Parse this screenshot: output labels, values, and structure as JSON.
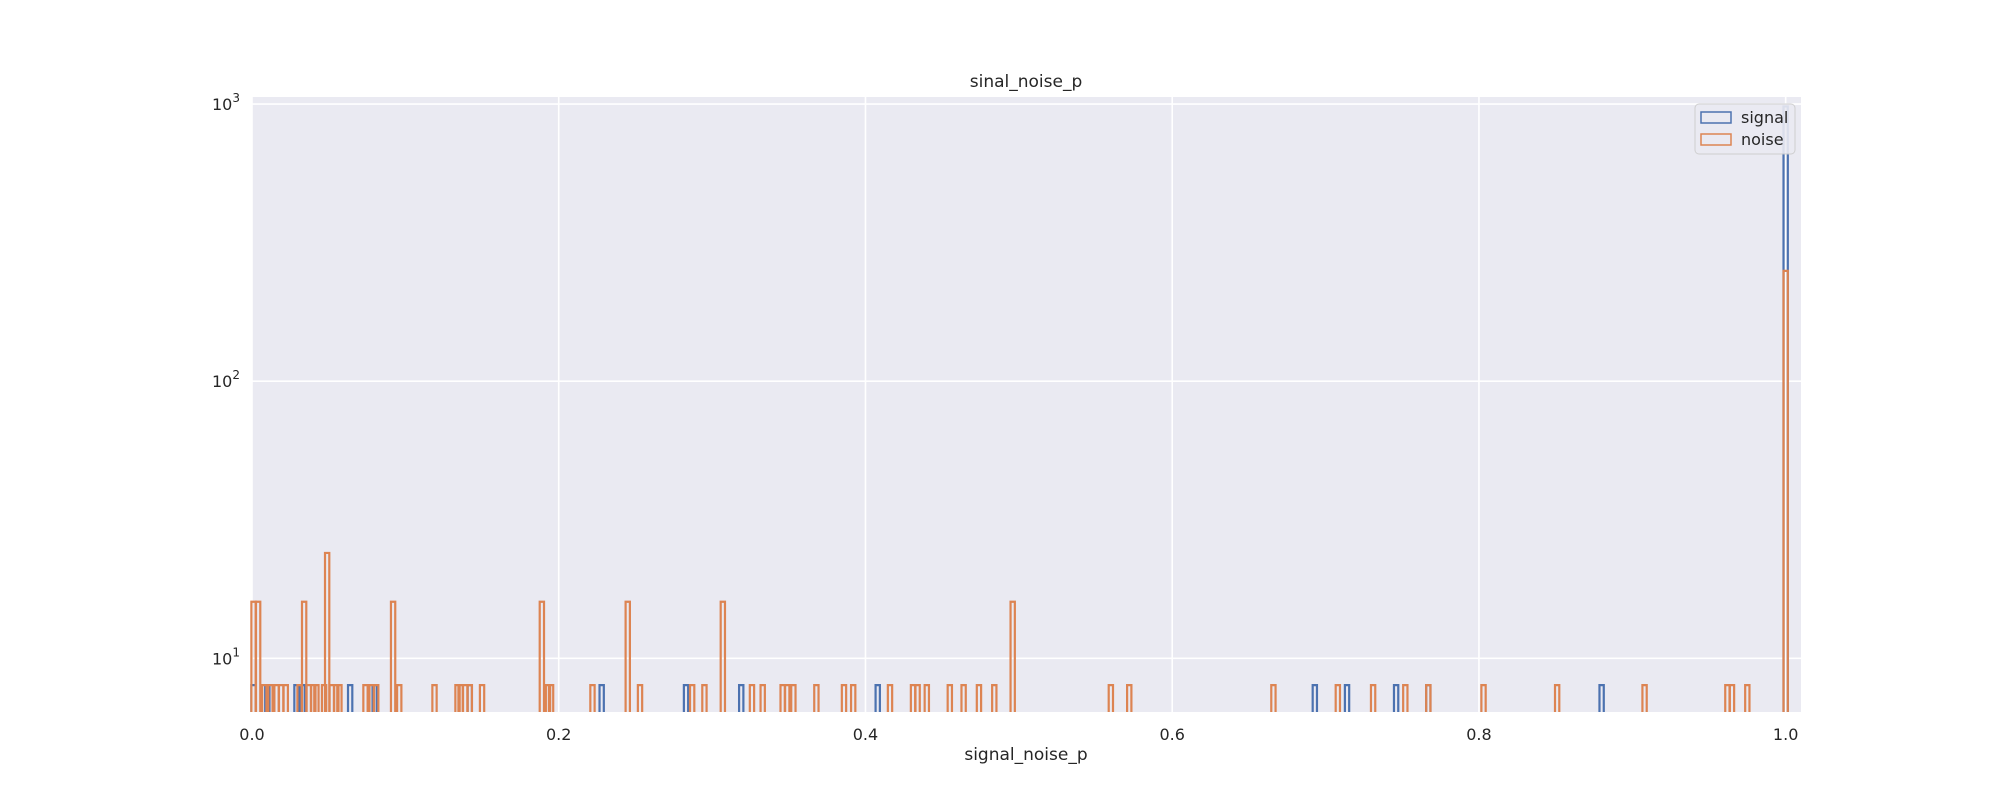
{
  "chart_data": {
    "type": "histogram",
    "title": "sinal_noise_p",
    "xlabel": "signal_noise_p",
    "ylabel": "",
    "xlim": [
      0.0,
      1.01
    ],
    "ylim": [
      6.4,
      1060
    ],
    "yscale": "log",
    "x_ticks": [
      0.0,
      0.2,
      0.4,
      0.6,
      0.8,
      1.0
    ],
    "x_tick_labels": [
      "0.0",
      "0.2",
      "0.4",
      "0.6",
      "0.8",
      "1.0"
    ],
    "y_ticks": [
      10,
      100,
      1000
    ],
    "y_tick_labels": [
      [
        "10",
        "1"
      ],
      [
        "10",
        "2"
      ],
      [
        "10",
        "3"
      ]
    ],
    "grid": true,
    "legend_position": "top-right",
    "histtype": "step",
    "series": [
      {
        "name": "signal",
        "color": "#4c72b0",
        "bins": [
          [
            0.001,
            8
          ],
          [
            0.01,
            8
          ],
          [
            0.029,
            8
          ],
          [
            0.033,
            8
          ],
          [
            0.064,
            8
          ],
          [
            0.08,
            8
          ],
          [
            0.142,
            8
          ],
          [
            0.228,
            8
          ],
          [
            0.283,
            8
          ],
          [
            0.319,
            8
          ],
          [
            0.408,
            8
          ],
          [
            0.693,
            8
          ],
          [
            0.714,
            8
          ],
          [
            0.746,
            8
          ],
          [
            0.767,
            8
          ],
          [
            0.88,
            8
          ],
          [
            1.0,
            980
          ]
        ]
      },
      {
        "name": "noise",
        "color": "#dd8452",
        "bins": [
          [
            0.001,
            16
          ],
          [
            0.004,
            16
          ],
          [
            0.008,
            8
          ],
          [
            0.012,
            8
          ],
          [
            0.016,
            8
          ],
          [
            0.019,
            8
          ],
          [
            0.022,
            8
          ],
          [
            0.031,
            8
          ],
          [
            0.034,
            16
          ],
          [
            0.037,
            8
          ],
          [
            0.04,
            8
          ],
          [
            0.042,
            8
          ],
          [
            0.047,
            8
          ],
          [
            0.049,
            24
          ],
          [
            0.052,
            8
          ],
          [
            0.055,
            8
          ],
          [
            0.057,
            8
          ],
          [
            0.074,
            8
          ],
          [
            0.078,
            8
          ],
          [
            0.081,
            8
          ],
          [
            0.092,
            16
          ],
          [
            0.096,
            8
          ],
          [
            0.119,
            8
          ],
          [
            0.134,
            8
          ],
          [
            0.136,
            8
          ],
          [
            0.139,
            8
          ],
          [
            0.142,
            8
          ],
          [
            0.15,
            8
          ],
          [
            0.189,
            16
          ],
          [
            0.193,
            8
          ],
          [
            0.195,
            8
          ],
          [
            0.222,
            8
          ],
          [
            0.245,
            16
          ],
          [
            0.253,
            8
          ],
          [
            0.287,
            8
          ],
          [
            0.295,
            8
          ],
          [
            0.307,
            16
          ],
          [
            0.326,
            8
          ],
          [
            0.333,
            8
          ],
          [
            0.346,
            8
          ],
          [
            0.349,
            8
          ],
          [
            0.353,
            8
          ],
          [
            0.368,
            8
          ],
          [
            0.386,
            8
          ],
          [
            0.392,
            8
          ],
          [
            0.416,
            8
          ],
          [
            0.431,
            8
          ],
          [
            0.434,
            8
          ],
          [
            0.44,
            8
          ],
          [
            0.455,
            8
          ],
          [
            0.464,
            8
          ],
          [
            0.474,
            8
          ],
          [
            0.484,
            8
          ],
          [
            0.496,
            16
          ],
          [
            0.56,
            8
          ],
          [
            0.572,
            8
          ],
          [
            0.666,
            8
          ],
          [
            0.708,
            8
          ],
          [
            0.731,
            8
          ],
          [
            0.752,
            8
          ],
          [
            0.767,
            8
          ],
          [
            0.803,
            8
          ],
          [
            0.851,
            8
          ],
          [
            0.908,
            8
          ],
          [
            0.962,
            8
          ],
          [
            0.965,
            8
          ],
          [
            0.975,
            8
          ],
          [
            1.0,
            250
          ]
        ]
      }
    ]
  }
}
